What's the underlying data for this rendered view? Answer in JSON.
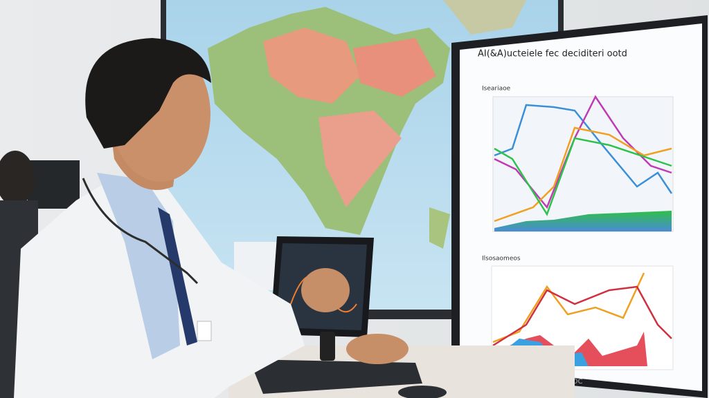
{
  "monitor": {
    "title": "AI(&A)ucteiele fec deciditeri ootd",
    "panel_top_title": "Iseariaoe",
    "panel_bottom_title": "Ilsosaomeos",
    "brand": "AOC"
  }
}
